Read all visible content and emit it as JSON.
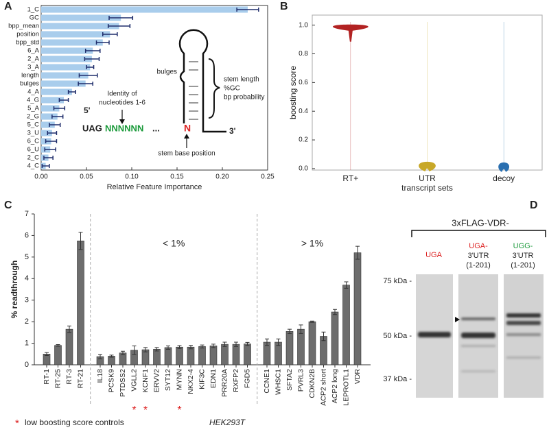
{
  "figure": {
    "panel_labels": [
      "A",
      "B",
      "C",
      "D"
    ],
    "diagram": {
      "bulges": "bulges",
      "stem_info": [
        "stem length",
        "%GC",
        "bp probability"
      ],
      "identity": [
        "Identity of",
        "nucleotides 1-6"
      ],
      "five_prime": "5'",
      "three_prime": "3'",
      "stop_codon": "UAG",
      "nucleotides": "NNNNNN",
      "ellipsis": "...",
      "stem_base": "N",
      "stem_base_label": "stem base position"
    },
    "blot": {
      "title": "3xFLAG-VDR-",
      "lanes": [
        {
          "label": [
            "UGA"
          ]
        },
        {
          "label": [
            "UGA-",
            "3'UTR",
            "(1-201)"
          ]
        },
        {
          "label": [
            "UGG-",
            "3'UTR",
            "(1-201)"
          ]
        }
      ],
      "markers": [
        "75 kDa -",
        "50 kDa -",
        "37 kDa -"
      ]
    }
  },
  "chart_data": [
    {
      "type": "hbar",
      "categories": [
        "1_C",
        "GC",
        "bpp_mean",
        "position",
        "bpp_std",
        "6_A",
        "2_A",
        "3_A",
        "length",
        "bulges",
        "4_A",
        "4_G",
        "5_A",
        "2_G",
        "5_C",
        "3_U",
        "6_C",
        "6_U",
        "2_C",
        "4_C"
      ],
      "values": [
        0.228,
        0.088,
        0.086,
        0.076,
        0.068,
        0.057,
        0.056,
        0.054,
        0.052,
        0.049,
        0.034,
        0.025,
        0.02,
        0.018,
        0.015,
        0.012,
        0.011,
        0.01,
        0.008,
        0.005
      ],
      "errors": [
        0.012,
        0.013,
        0.012,
        0.008,
        0.007,
        0.008,
        0.008,
        0.004,
        0.01,
        0.008,
        0.004,
        0.005,
        0.006,
        0.006,
        0.006,
        0.005,
        0.006,
        0.006,
        0.005,
        0.004
      ],
      "color": "#a9cdec",
      "error_color": "#1f2d6b",
      "xlabel": "Relative Feature Importance",
      "xlim": [
        0,
        0.25
      ],
      "xticks": [
        {
          "value": 0,
          "label": "0.00"
        },
        {
          "value": 0.05,
          "label": "0.05"
        },
        {
          "value": 0.1,
          "label": "0.10"
        },
        {
          "value": 0.15,
          "label": "0.15"
        },
        {
          "value": 0.2,
          "label": "0.20"
        },
        {
          "value": 0.25,
          "label": "0.25"
        }
      ]
    },
    {
      "type": "violin",
      "categories": [
        "RT+",
        "UTR",
        "decoy"
      ],
      "values": [
        0.99,
        0.01,
        0.005
      ],
      "colors": [
        "#b22222",
        "#c8a828",
        "#2a6fb0"
      ],
      "xlabel": "transcript sets",
      "ylabel": "boosting score",
      "ylim": [
        -0.01,
        1.07
      ],
      "yticks": [
        {
          "value": 0,
          "label": "0.0"
        },
        {
          "value": 0.2,
          "label": "0.2"
        },
        {
          "value": 0.4,
          "label": "0.4"
        },
        {
          "value": 0.6,
          "label": "0.6"
        },
        {
          "value": 0.8,
          "label": "0.8"
        },
        {
          "value": 1,
          "label": "1.0"
        }
      ]
    },
    {
      "type": "bar",
      "categories": [
        "RT-1",
        "RT-25",
        "RT-3",
        "RT-21",
        "IL18",
        "PCSK9",
        "PTDSS2",
        "VGLL2",
        "KCNF1",
        "ERVV2",
        "SYT12",
        "MYNN",
        "NKX2-4",
        "KIF3C",
        "EDN1",
        "PRR20A",
        "RXFP2",
        "FGD5",
        "CCNE1",
        "WHSC1",
        "SFTA2",
        "PVRL3",
        "CDKN2B",
        "ACP2 short",
        "ACP2 long",
        "LEPROTL1",
        "VDR"
      ],
      "values": [
        0.5,
        0.9,
        1.65,
        5.75,
        0.38,
        0.4,
        0.55,
        0.68,
        0.7,
        0.72,
        0.8,
        0.82,
        0.82,
        0.85,
        0.88,
        0.95,
        0.95,
        0.97,
        1.05,
        1.05,
        1.55,
        1.65,
        2.0,
        1.32,
        2.45,
        3.7,
        5.2
      ],
      "errors": [
        0.07,
        0.04,
        0.15,
        0.4,
        0.1,
        0.05,
        0.08,
        0.2,
        0.1,
        0.08,
        0.08,
        0.07,
        0.08,
        0.07,
        0.08,
        0.1,
        0.1,
        0.07,
        0.15,
        0.15,
        0.1,
        0.2,
        0.03,
        0.2,
        0.12,
        0.15,
        0.3
      ],
      "color": "#6d6d6d",
      "ylabel": "% readthrough",
      "ylim": [
        0,
        7
      ],
      "yticks": [
        0,
        1,
        2,
        3,
        4,
        5,
        6,
        7
      ],
      "annotations": [
        "< 1%",
        "> 1%"
      ],
      "markers": [
        {
          "category": "VGLL2",
          "label": "*"
        },
        {
          "category": "KCNF1",
          "label": "*"
        },
        {
          "category": "MYNN",
          "label": "*"
        }
      ],
      "footnote": {
        "symbol": "*",
        "text": "low boosting score controls"
      },
      "cell_line": "HEK293T"
    }
  ]
}
